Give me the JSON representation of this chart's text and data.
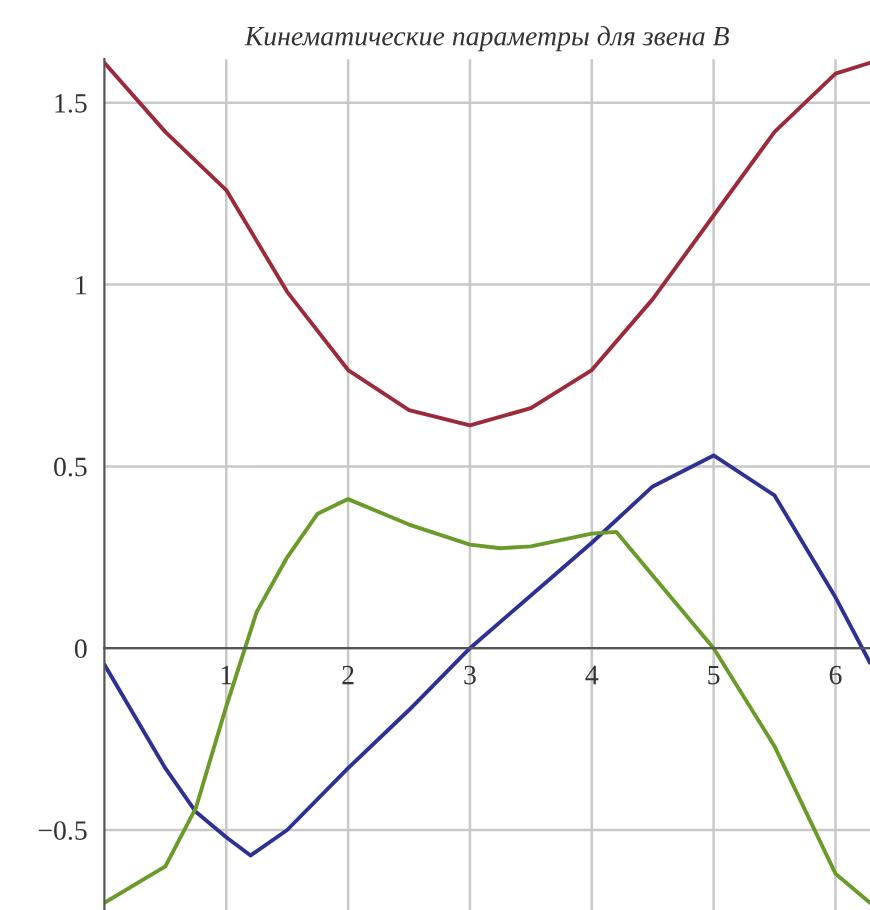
{
  "chart_data": {
    "type": "line",
    "title": "Кинематические параметры для звена B",
    "xlim": [
      0,
      6.2832
    ],
    "ylim": [
      -0.72,
      1.62
    ],
    "xticks": [
      1,
      2,
      3,
      4,
      5,
      6
    ],
    "yticks": [
      -0.5,
      0,
      0.5,
      1,
      1.5
    ],
    "grid": true,
    "line_style": "solid",
    "series": [
      {
        "color": "#9b2a3a",
        "x": [
          0,
          0.5,
          1,
          1.5,
          2,
          2.5,
          3,
          3.5,
          4,
          4.5,
          5,
          5.5,
          6,
          6.2832
        ],
        "values": [
          1.61,
          1.42,
          1.26,
          0.98,
          0.765,
          0.655,
          0.613,
          0.66,
          0.765,
          0.96,
          1.19,
          1.42,
          1.58,
          1.61
        ]
      },
      {
        "color": "#2e3192",
        "x": [
          0,
          0.5,
          0.75,
          1,
          1.2,
          1.5,
          2,
          2.5,
          3,
          3.5,
          4,
          4.5,
          5,
          5.5,
          6,
          6.2832
        ],
        "values": [
          -0.045,
          -0.33,
          -0.45,
          -0.52,
          -0.57,
          -0.5,
          -0.33,
          -0.17,
          0,
          0.145,
          0.29,
          0.445,
          0.53,
          0.42,
          0.14,
          -0.04
        ]
      },
      {
        "color": "#6a9a2a",
        "x": [
          0,
          0.5,
          0.75,
          1,
          1.25,
          1.5,
          1.75,
          2,
          2.5,
          3,
          3.25,
          3.5,
          4,
          4.2,
          4.5,
          5,
          5.5,
          6,
          6.2832
        ],
        "values": [
          -0.7,
          -0.6,
          -0.44,
          -0.16,
          0.1,
          0.25,
          0.37,
          0.41,
          0.34,
          0.285,
          0.275,
          0.28,
          0.315,
          0.32,
          0.2,
          0,
          -0.27,
          -0.62,
          -0.7
        ]
      }
    ]
  }
}
